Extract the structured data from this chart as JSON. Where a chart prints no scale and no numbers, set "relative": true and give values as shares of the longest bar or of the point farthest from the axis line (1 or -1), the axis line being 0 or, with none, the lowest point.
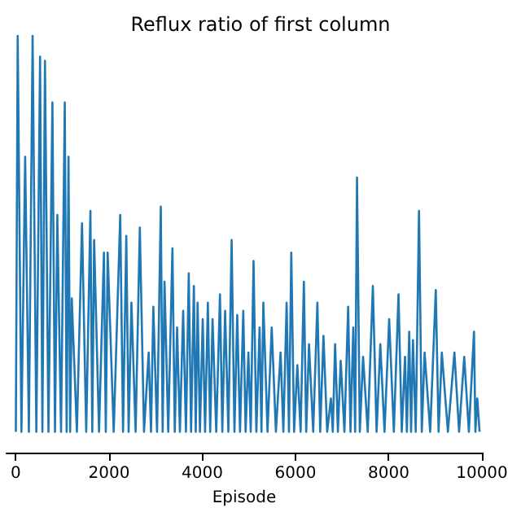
{
  "chart_data": {
    "type": "line",
    "title": "Reflux ratio of first column",
    "xlabel": "Episode",
    "relative": true,
    "marker": "none",
    "line_style": "solid",
    "xlim": [
      -200,
      10000
    ],
    "xticks": [
      0,
      2000,
      4000,
      6000,
      8000,
      10000
    ],
    "series": [
      {
        "color": "#1f77b4",
        "x": [
          0,
          40,
          120,
          200,
          280,
          360,
          440,
          520,
          570,
          625,
          700,
          785,
          840,
          890,
          970,
          1050,
          1090,
          1130,
          1165,
          1200,
          1310,
          1420,
          1510,
          1600,
          1640,
          1680,
          1785,
          1890,
          1930,
          1970,
          2100,
          2240,
          2300,
          2370,
          2420,
          2480,
          2570,
          2660,
          2750,
          2850,
          2900,
          2950,
          3030,
          3110,
          3150,
          3190,
          3270,
          3360,
          3410,
          3460,
          3520,
          3590,
          3650,
          3710,
          3760,
          3820,
          3860,
          3900,
          3950,
          4010,
          4060,
          4120,
          4170,
          4220,
          4300,
          4380,
          4430,
          4490,
          4560,
          4630,
          4690,
          4750,
          4810,
          4880,
          4930,
          4990,
          5040,
          5100,
          5160,
          5230,
          5270,
          5310,
          5400,
          5490,
          5580,
          5680,
          5740,
          5810,
          5860,
          5910,
          5970,
          6040,
          6110,
          6180,
          6230,
          6290,
          6380,
          6470,
          6530,
          6600,
          6680,
          6760,
          6800,
          6850,
          6910,
          6970,
          7050,
          7130,
          7180,
          7240,
          7280,
          7320,
          7380,
          7450,
          7550,
          7660,
          7740,
          7820,
          7910,
          8010,
          8110,
          8210,
          8280,
          8350,
          8390,
          8440,
          8480,
          8520,
          8580,
          8650,
          8710,
          8770,
          8890,
          9010,
          9070,
          9140,
          9270,
          9410,
          9510,
          9620,
          9720,
          9830,
          9860,
          9900,
          9950
        ],
        "values": [
          0.05,
          1.0,
          0.05,
          0.71,
          0.05,
          1.0,
          0.05,
          0.95,
          0.05,
          0.94,
          0.05,
          0.84,
          0.05,
          0.57,
          0.05,
          0.84,
          0.05,
          0.71,
          0.05,
          0.37,
          0.05,
          0.55,
          0.05,
          0.58,
          0.05,
          0.51,
          0.05,
          0.48,
          0.05,
          0.48,
          0.05,
          0.57,
          0.05,
          0.52,
          0.05,
          0.36,
          0.05,
          0.54,
          0.05,
          0.24,
          0.05,
          0.35,
          0.05,
          0.59,
          0.05,
          0.41,
          0.05,
          0.49,
          0.05,
          0.3,
          0.05,
          0.34,
          0.05,
          0.43,
          0.05,
          0.4,
          0.05,
          0.36,
          0.05,
          0.32,
          0.05,
          0.36,
          0.05,
          0.32,
          0.05,
          0.38,
          0.05,
          0.34,
          0.05,
          0.51,
          0.05,
          0.33,
          0.05,
          0.34,
          0.05,
          0.24,
          0.05,
          0.46,
          0.05,
          0.3,
          0.05,
          0.36,
          0.05,
          0.3,
          0.05,
          0.24,
          0.05,
          0.36,
          0.05,
          0.48,
          0.05,
          0.21,
          0.05,
          0.41,
          0.05,
          0.26,
          0.05,
          0.36,
          0.05,
          0.28,
          0.05,
          0.13,
          0.05,
          0.26,
          0.05,
          0.22,
          0.05,
          0.35,
          0.05,
          0.3,
          0.05,
          0.66,
          0.05,
          0.23,
          0.05,
          0.4,
          0.05,
          0.26,
          0.05,
          0.32,
          0.05,
          0.38,
          0.05,
          0.23,
          0.05,
          0.29,
          0.05,
          0.27,
          0.05,
          0.58,
          0.05,
          0.24,
          0.05,
          0.39,
          0.05,
          0.24,
          0.05,
          0.24,
          0.05,
          0.23,
          0.05,
          0.29,
          0.05,
          0.13,
          0.05
        ]
      }
    ]
  }
}
